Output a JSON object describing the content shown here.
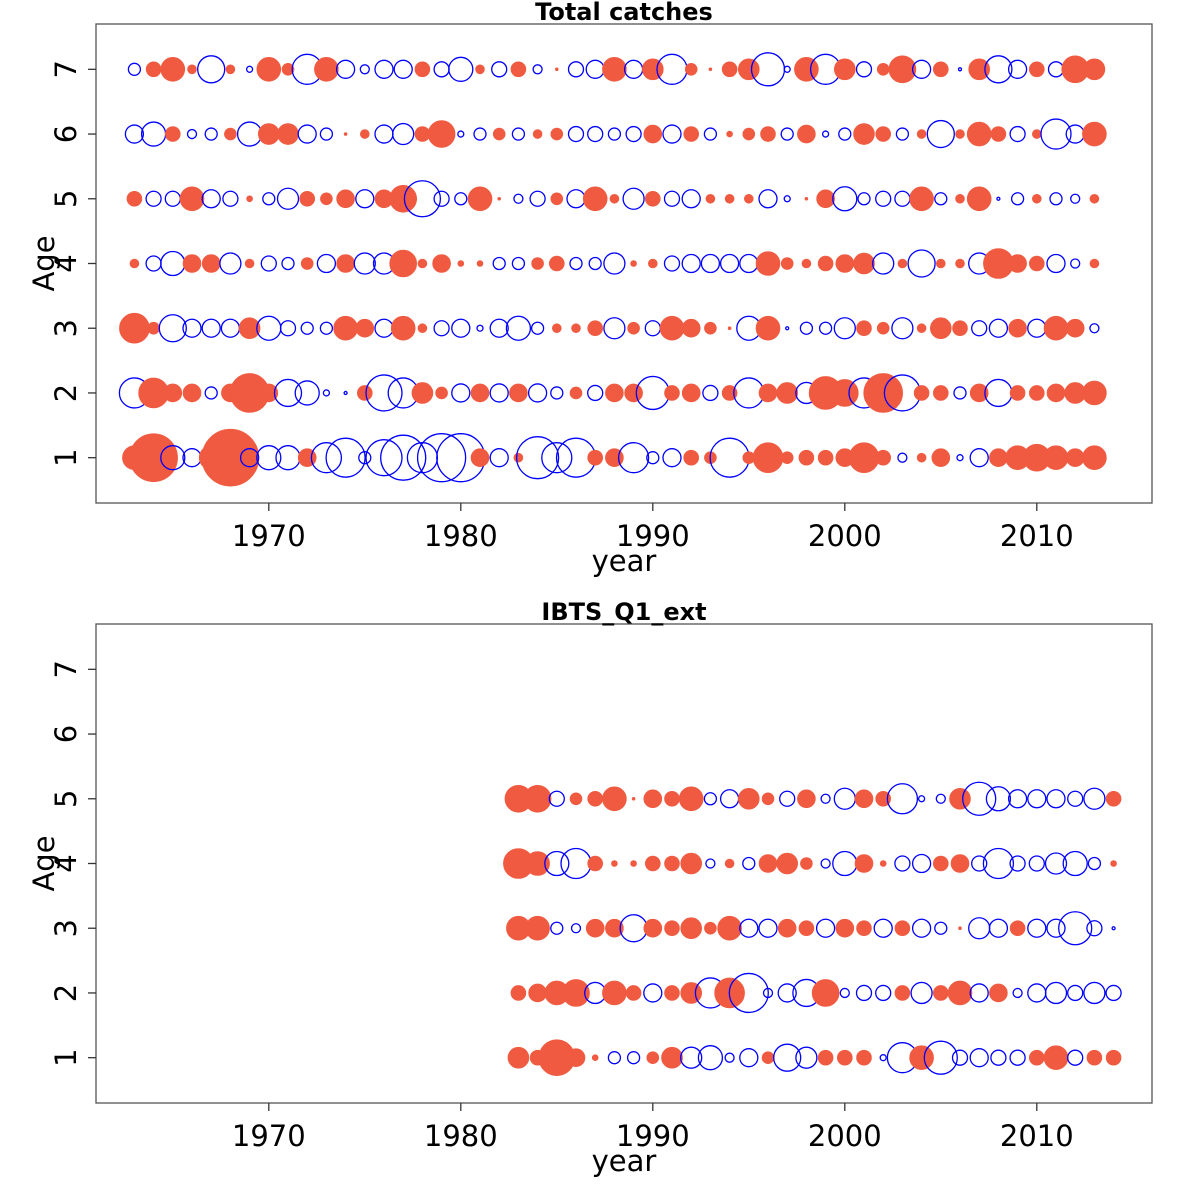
{
  "colors": {
    "positive": "#f05a40",
    "negative": "#0000ff"
  },
  "chart_data": [
    {
      "type": "scatter",
      "subtype": "bubble-residuals",
      "title": "Total catches",
      "xlabel": "year",
      "ylabel": "Age",
      "xlim": [
        1961,
        2016
      ],
      "ylim": [
        0.3,
        7.7
      ],
      "xticks": [
        1970,
        1980,
        1990,
        2000,
        2010
      ],
      "yticks": [
        1,
        2,
        3,
        4,
        5,
        6,
        7
      ],
      "encoding": "point size = |residual|; filled red = positive, open blue = negative",
      "years": [
        1963,
        1964,
        1965,
        1966,
        1967,
        1968,
        1969,
        1970,
        1971,
        1972,
        1973,
        1974,
        1975,
        1976,
        1977,
        1978,
        1979,
        1980,
        1981,
        1982,
        1983,
        1984,
        1985,
        1986,
        1987,
        1988,
        1989,
        1990,
        1991,
        1992,
        1993,
        1994,
        1995,
        1996,
        1997,
        1998,
        1999,
        2000,
        2001,
        2002,
        2003,
        2004,
        2005,
        2006,
        2007,
        2008,
        2009,
        2010,
        2011,
        2012,
        2013
      ],
      "ages": [
        1,
        2,
        3,
        4,
        5,
        6,
        7
      ],
      "residuals": [
        [
          0.8,
          1.6,
          -0.8,
          -0.6,
          0.8,
          1.9,
          -0.6,
          -0.8,
          -0.8,
          0.6,
          -1.0,
          -1.3,
          -0.4,
          -1.2,
          -1.5,
          -1.0,
          -1.6,
          -1.6,
          0.6,
          -0.6,
          0.3,
          -1.4,
          -1.0,
          -1.3,
          0.5,
          0.6,
          -1.0,
          -0.4,
          -0.6,
          0.5,
          0.4,
          -1.3,
          0.4,
          1.0,
          0.4,
          0.5,
          0.5,
          0.6,
          1.0,
          0.5,
          -0.3,
          0.3,
          0.6,
          -0.2,
          -0.6,
          0.6,
          0.8,
          0.9,
          0.8,
          0.6,
          0.8
        ],
        [
          -1.0,
          1.0,
          0.6,
          0.6,
          -0.4,
          0.6,
          1.3,
          0.6,
          -0.9,
          -0.8,
          -0.2,
          -0.1,
          0.5,
          -1.2,
          -1.0,
          0.7,
          0.4,
          -0.6,
          0.6,
          -0.6,
          0.6,
          -0.6,
          -0.4,
          0.4,
          -0.5,
          0.6,
          0.6,
          -1.1,
          0.5,
          0.6,
          -0.5,
          0.5,
          -1.0,
          0.6,
          0.7,
          -0.7,
          1.1,
          0.9,
          -1.0,
          1.3,
          -1.2,
          0.5,
          0.5,
          -0.4,
          0.6,
          -0.9,
          0.5,
          0.5,
          0.6,
          0.7,
          0.8
        ],
        [
          1.0,
          0.4,
          -0.9,
          -0.6,
          -0.6,
          -0.6,
          0.7,
          -0.8,
          -0.5,
          -0.4,
          -0.4,
          0.8,
          0.6,
          -0.6,
          0.8,
          0.3,
          -0.5,
          -0.6,
          -0.2,
          -0.6,
          -0.8,
          -0.4,
          0.3,
          0.3,
          0.5,
          -0.7,
          0.4,
          -0.5,
          0.8,
          0.6,
          0.4,
          0.1,
          -0.8,
          0.8,
          -0.1,
          -0.4,
          -0.4,
          -0.7,
          0.5,
          0.4,
          -0.7,
          0.3,
          0.7,
          0.5,
          -0.5,
          -0.6,
          0.6,
          -0.6,
          0.8,
          0.6,
          -0.3
        ],
        [
          0.3,
          -0.5,
          -0.8,
          0.6,
          0.6,
          -0.7,
          0.3,
          -0.5,
          -0.4,
          0.4,
          -0.6,
          0.6,
          -0.7,
          -0.7,
          0.9,
          0.3,
          0.6,
          0.2,
          0.2,
          -0.4,
          -0.4,
          0.4,
          0.5,
          -0.4,
          -0.4,
          -0.7,
          0.2,
          0.3,
          -0.5,
          -0.6,
          -0.6,
          -0.6,
          -0.6,
          0.8,
          0.4,
          0.3,
          0.5,
          0.6,
          0.7,
          -0.7,
          0.3,
          -0.9,
          0.3,
          0.3,
          -0.7,
          1.0,
          0.6,
          0.5,
          -0.6,
          -0.3,
          0.3
        ],
        [
          0.5,
          -0.5,
          -0.5,
          0.8,
          -0.6,
          -0.5,
          0.2,
          -0.4,
          -0.7,
          0.5,
          0.4,
          0.6,
          -0.6,
          0.6,
          0.9,
          -1.2,
          -0.5,
          -0.4,
          0.8,
          0.1,
          -0.3,
          -0.5,
          0.4,
          -0.6,
          0.8,
          0.3,
          -0.7,
          0.5,
          -0.5,
          -0.6,
          0.3,
          0.3,
          0.3,
          -0.6,
          -0.2,
          0.1,
          0.6,
          -0.8,
          -0.4,
          -0.5,
          -0.5,
          0.8,
          -0.4,
          0.3,
          0.8,
          -0.1,
          -0.4,
          0.3,
          -0.4,
          -0.3,
          0.3
        ],
        [
          -0.6,
          -0.8,
          0.5,
          -0.3,
          -0.4,
          0.4,
          -0.8,
          0.7,
          0.7,
          -0.6,
          -0.4,
          0.1,
          0.3,
          -0.6,
          -0.7,
          0.5,
          0.9,
          -0.2,
          -0.4,
          0.4,
          -0.4,
          0.3,
          0.4,
          -0.5,
          -0.5,
          -0.4,
          -0.5,
          0.6,
          -0.6,
          0.5,
          -0.4,
          0.2,
          0.4,
          0.5,
          -0.4,
          0.6,
          -0.2,
          -0.4,
          0.7,
          0.5,
          -0.4,
          0.3,
          -0.9,
          0.3,
          0.8,
          0.5,
          -0.5,
          0.3,
          -1.0,
          -0.6,
          0.8
        ],
        [
          -0.4,
          0.5,
          0.8,
          0.3,
          -0.9,
          0.3,
          -0.2,
          0.8,
          0.4,
          -1.0,
          0.8,
          -0.6,
          -0.3,
          -0.6,
          -0.6,
          0.5,
          -0.5,
          -0.8,
          0.3,
          -0.5,
          0.5,
          -0.3,
          0.1,
          -0.5,
          -0.6,
          0.8,
          -0.6,
          0.7,
          -1.0,
          0.4,
          0.1,
          0.5,
          0.7,
          -1.1,
          -0.2,
          0.8,
          -1.0,
          0.7,
          -0.5,
          0.4,
          0.9,
          -0.6,
          0.5,
          -0.1,
          0.7,
          -0.9,
          -0.6,
          0.5,
          -0.5,
          0.9,
          0.7
        ]
      ]
    },
    {
      "type": "scatter",
      "subtype": "bubble-residuals",
      "title": "IBTS_Q1_ext",
      "xlabel": "year",
      "ylabel": "Age",
      "xlim": [
        1961,
        2016
      ],
      "ylim": [
        0.3,
        7.7
      ],
      "xticks": [
        1970,
        1980,
        1990,
        2000,
        2010
      ],
      "yticks": [
        1,
        2,
        3,
        4,
        5,
        6,
        7
      ],
      "encoding": "point size = |residual|; filled red = positive, open blue = negative",
      "years": [
        1983,
        1984,
        1985,
        1986,
        1987,
        1988,
        1989,
        1990,
        1991,
        1992,
        1993,
        1994,
        1995,
        1996,
        1997,
        1998,
        1999,
        2000,
        2001,
        2002,
        2003,
        2004,
        2005,
        2006,
        2007,
        2008,
        2009,
        2010,
        2011,
        2012,
        2013,
        2014
      ],
      "ages": [
        1,
        2,
        3,
        4,
        5
      ],
      "residuals": [
        [
          0.7,
          0.5,
          1.2,
          0.6,
          0.2,
          -0.4,
          -0.4,
          0.4,
          0.7,
          -0.7,
          -0.8,
          -0.3,
          -0.6,
          0.4,
          -0.9,
          -0.7,
          0.5,
          0.5,
          0.5,
          -0.2,
          -1.0,
          0.8,
          -1.1,
          -0.5,
          -0.6,
          -0.5,
          -0.5,
          0.5,
          0.8,
          -0.5,
          0.5,
          0.5
        ],
        [
          0.5,
          0.6,
          0.8,
          0.9,
          -0.7,
          0.8,
          0.5,
          -0.6,
          0.5,
          0.7,
          -1.0,
          1.0,
          -1.3,
          -0.3,
          -0.6,
          -0.9,
          0.9,
          -0.3,
          -0.5,
          -0.5,
          0.5,
          -0.7,
          0.5,
          0.8,
          -0.6,
          0.6,
          -0.3,
          -0.6,
          -0.7,
          -0.5,
          -0.7,
          -0.5
        ],
        [
          0.8,
          0.8,
          -0.4,
          -0.3,
          0.6,
          0.6,
          -0.9,
          0.6,
          0.5,
          0.7,
          0.4,
          0.8,
          -0.6,
          -0.6,
          0.6,
          0.5,
          -0.6,
          0.6,
          0.5,
          -0.6,
          0.5,
          -0.6,
          -0.4,
          0.1,
          -0.7,
          -0.6,
          0.5,
          -0.6,
          -0.6,
          -1.1,
          -0.5,
          -0.1
        ],
        [
          1.0,
          0.8,
          -0.8,
          -1.0,
          0.5,
          0.2,
          0.2,
          0.5,
          0.5,
          0.7,
          -0.3,
          0.3,
          -0.4,
          0.6,
          0.7,
          0.4,
          -0.3,
          -0.8,
          0.6,
          0.2,
          -0.5,
          -0.6,
          0.5,
          0.6,
          -0.5,
          -1.0,
          -0.5,
          -0.5,
          -0.7,
          -0.8,
          -0.4,
          0.2
        ],
        [
          0.9,
          0.9,
          -0.5,
          0.4,
          0.5,
          0.8,
          0.1,
          0.6,
          0.5,
          0.8,
          -0.4,
          -0.6,
          0.7,
          0.4,
          -0.5,
          0.6,
          -0.3,
          -0.7,
          0.6,
          0.5,
          -1.0,
          -0.2,
          -0.3,
          0.7,
          -1.1,
          -0.8,
          -0.6,
          -0.6,
          -0.6,
          -0.5,
          -0.7,
          0.5
        ]
      ]
    }
  ]
}
